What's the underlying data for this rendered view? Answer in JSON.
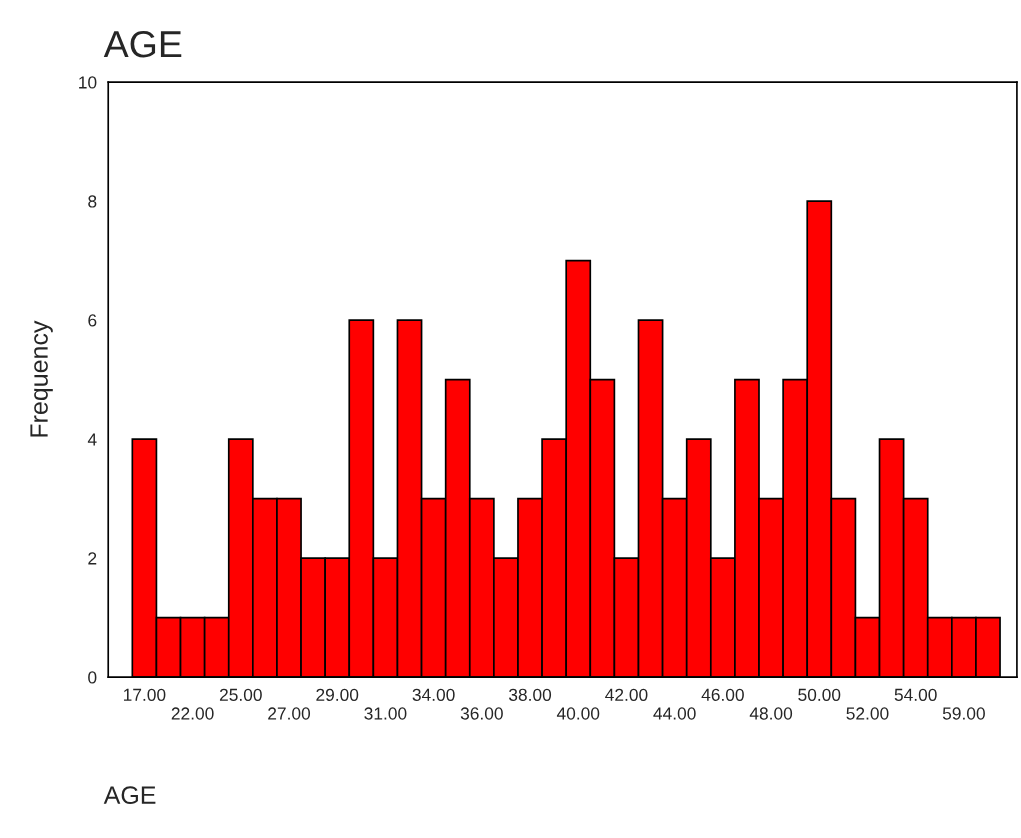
{
  "chart_data": {
    "type": "bar",
    "title": "AGE",
    "xlabel": "AGE",
    "ylabel": "Frequency",
    "categories": [
      "17.00",
      null,
      "22.00",
      null,
      "25.00",
      null,
      "27.00",
      null,
      "29.00",
      null,
      "31.00",
      null,
      "34.00",
      null,
      "36.00",
      null,
      "38.00",
      null,
      "40.00",
      null,
      "42.00",
      null,
      "44.00",
      null,
      "46.00",
      null,
      "48.00",
      null,
      "50.00",
      null,
      "52.00",
      null,
      "54.00",
      null,
      "59.00",
      null
    ],
    "values": [
      4,
      1,
      1,
      1,
      4,
      3,
      3,
      2,
      2,
      6,
      2,
      6,
      3,
      5,
      3,
      2,
      3,
      4,
      7,
      5,
      2,
      6,
      3,
      4,
      2,
      5,
      3,
      5,
      8,
      3,
      1,
      4,
      3,
      1,
      1,
      1
    ],
    "color": "#ff0000",
    "ylim": [
      0,
      10
    ],
    "yticks": [
      0,
      2,
      4,
      6,
      8,
      10
    ],
    "grid": false,
    "legend": false
  }
}
